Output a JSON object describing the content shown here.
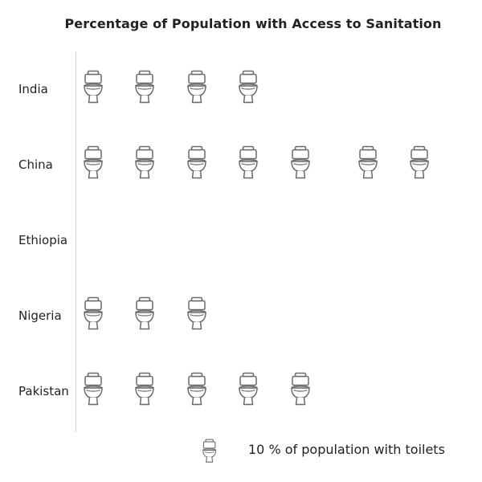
{
  "chart_data": {
    "type": "pictograph",
    "title": "Percentage of Population with Access to Sanitation",
    "categories": [
      "India",
      "China",
      "Ethiopia",
      "Nigeria",
      "Pakistan"
    ],
    "values": [
      40,
      70,
      0,
      30,
      50
    ],
    "icon": "toilet-icon",
    "unit_value": 10,
    "legend": "10 % of population with toilets",
    "grid": false
  }
}
